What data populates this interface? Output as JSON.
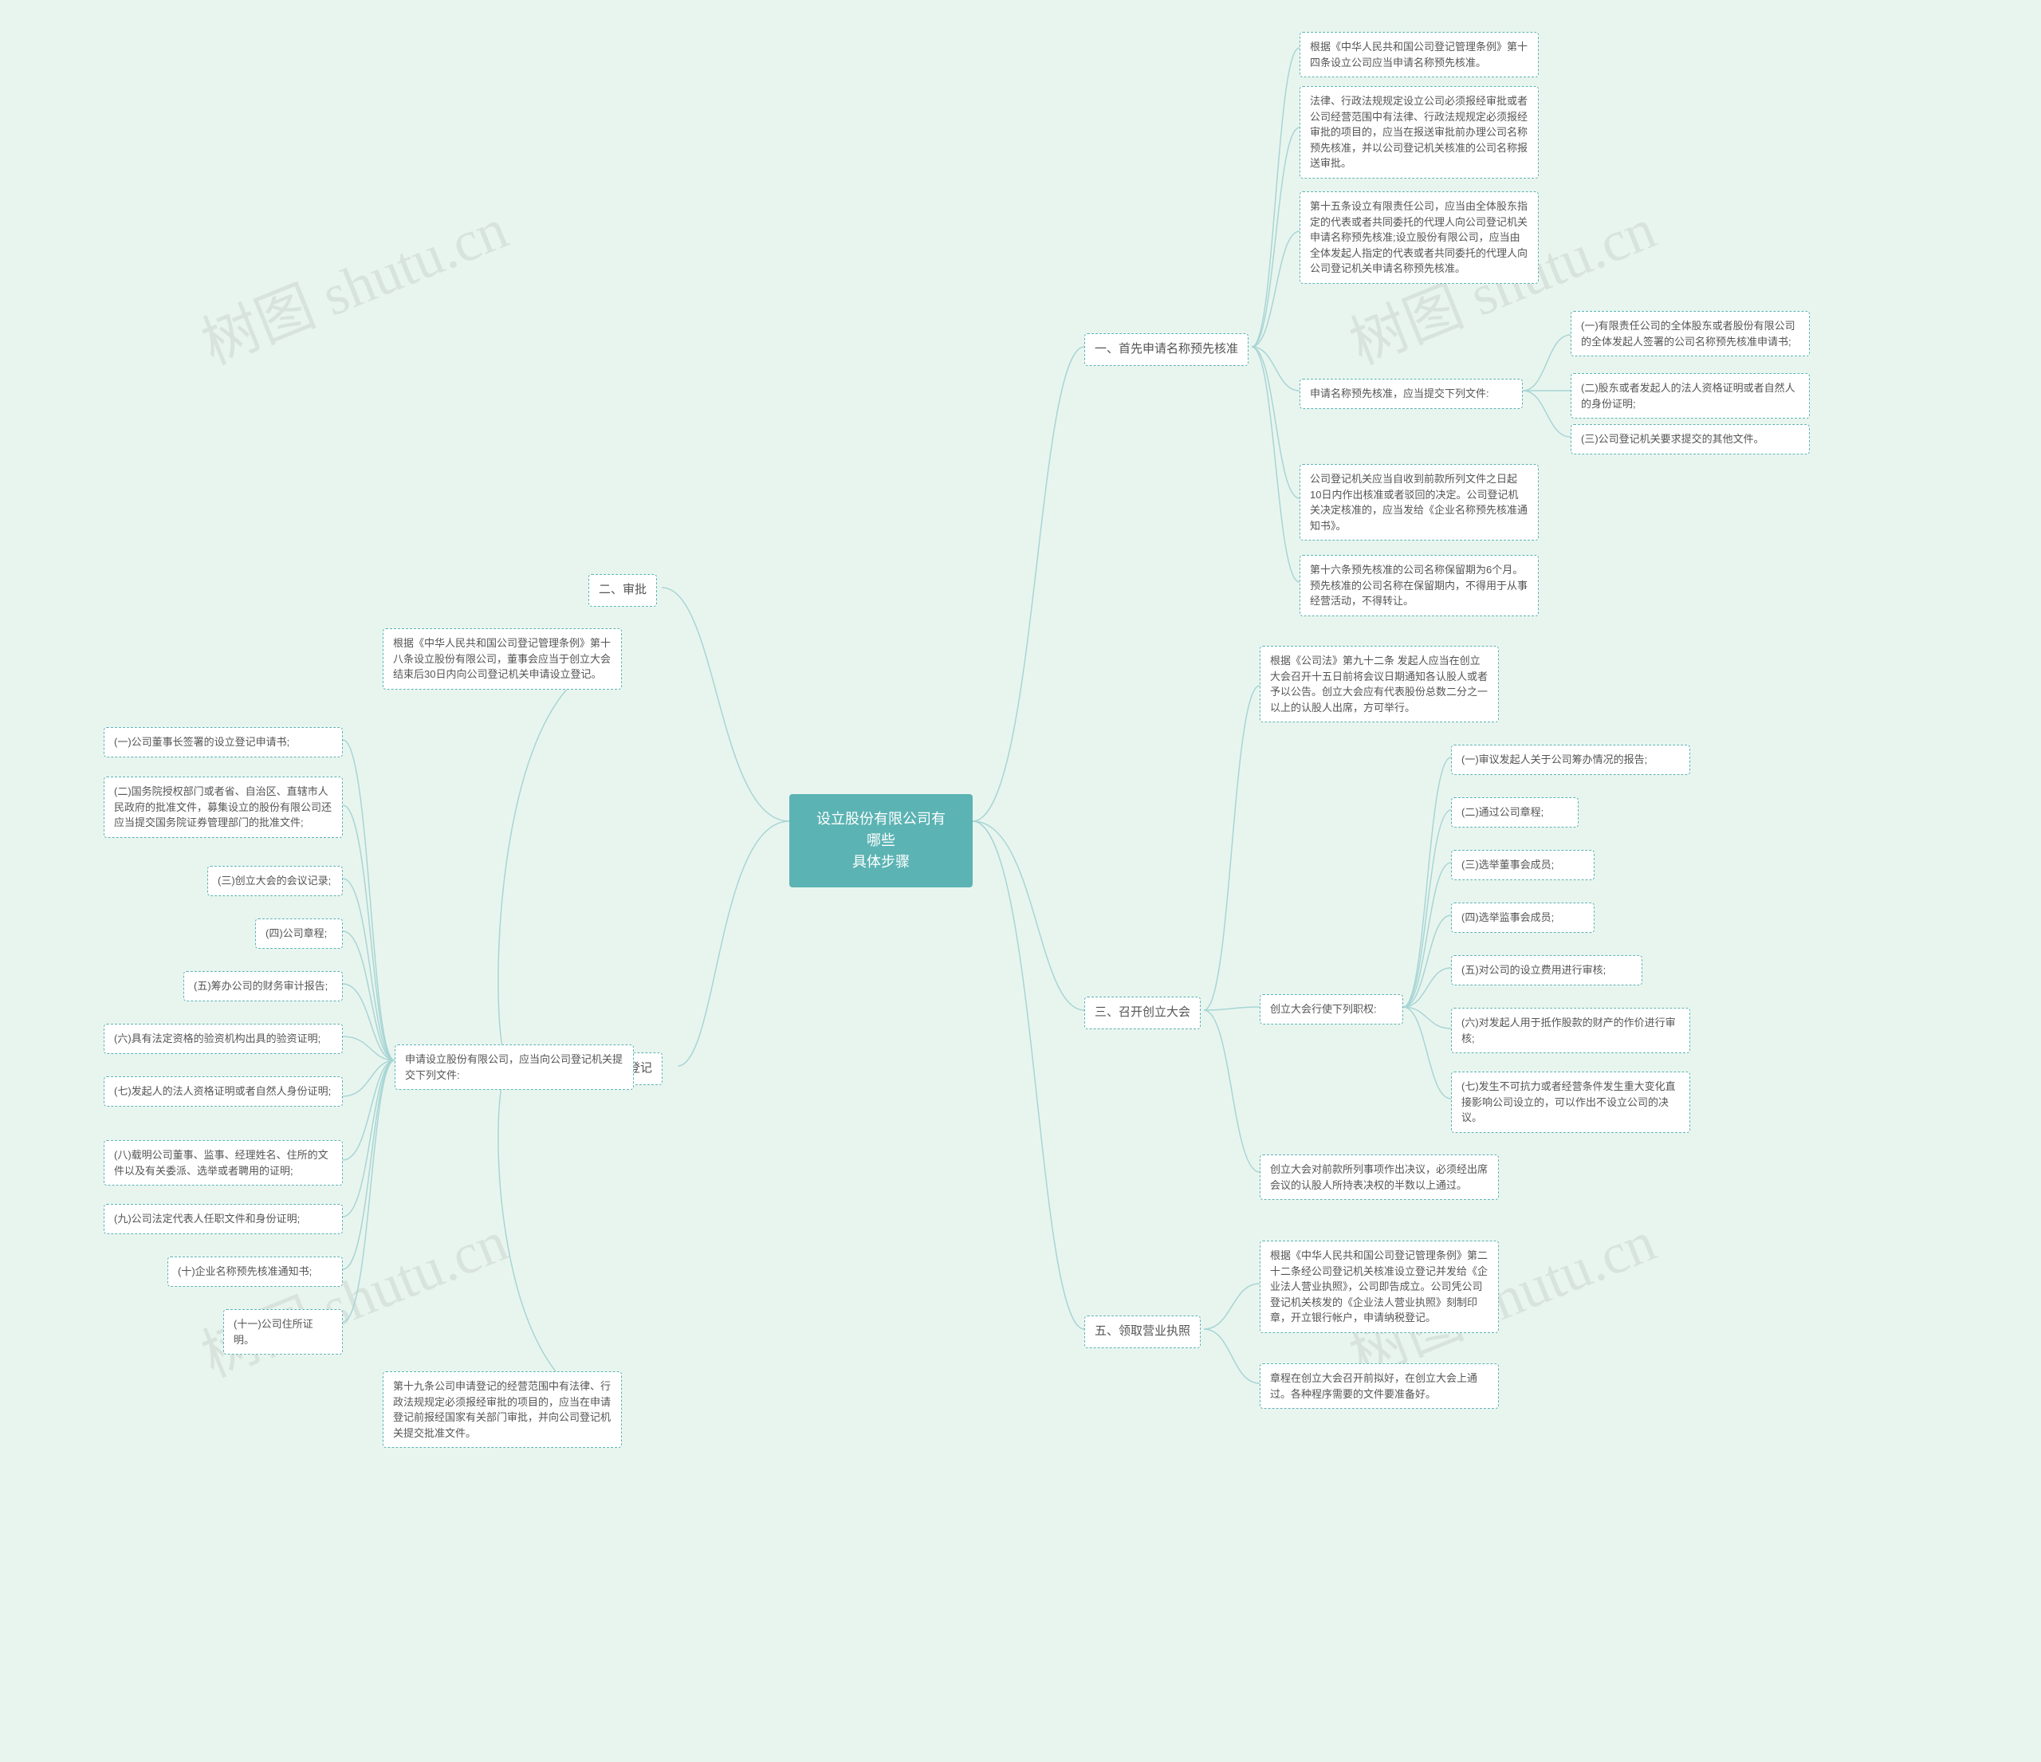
{
  "center": "设立股份有限公司有哪些\n具体步骤",
  "watermark": "树图 shutu.cn",
  "colors": {
    "bg": "#e8f5ee",
    "center_bg": "#5cb3b3",
    "center_text": "#ffffff",
    "node_border": "#5cb3b3",
    "node_bg": "#ffffff",
    "node_text": "#555555",
    "connector": "#a8d5d5",
    "watermark": "rgba(128,128,128,0.15)"
  },
  "branches": {
    "b1": {
      "label": "一、首先申请名称预先核准",
      "children": {
        "c1": "根据《中华人民共和国公司登记管理条例》第十四条设立公司应当申请名称预先核准。",
        "c2": "法律、行政法规规定设立公司必须报经审批或者公司经营范围中有法律、行政法规规定必须报经审批的项目的，应当在报送审批前办理公司名称预先核准，并以公司登记机关核准的公司名称报送审批。",
        "c3": "第十五条设立有限责任公司，应当由全体股东指定的代表或者共同委托的代理人向公司登记机关申请名称预先核准;设立股份有限公司，应当由全体发起人指定的代表或者共同委托的代理人向公司登记机关申请名称预先核准。",
        "c4": {
          "label": "申请名称预先核准，应当提交下列文件:",
          "sub": {
            "s1": "(一)有限责任公司的全体股东或者股份有限公司的全体发起人签署的公司名称预先核准申请书;",
            "s2": "(二)股东或者发起人的法人资格证明或者自然人的身份证明;",
            "s3": "(三)公司登记机关要求提交的其他文件。"
          }
        },
        "c5": "公司登记机关应当自收到前款所列文件之日起10日内作出核准或者驳回的决定。公司登记机关决定核准的，应当发给《企业名称预先核准通知书》。",
        "c6": "第十六条预先核准的公司名称保留期为6个月。预先核准的公司名称在保留期内，不得用于从事经营活动，不得转让。"
      }
    },
    "b2": {
      "label": "二、审批"
    },
    "b3": {
      "label": "三、召开创立大会",
      "children": {
        "c1": "根据《公司法》第九十二条 发起人应当在创立大会召开十五日前将会议日期通知各认股人或者予以公告。创立大会应有代表股份总数二分之一以上的认股人出席，方可举行。",
        "c2": {
          "label": "创立大会行使下列职权:",
          "sub": {
            "s1": "(一)审议发起人关于公司筹办情况的报告;",
            "s2": "(二)通过公司章程;",
            "s3": "(三)选举董事会成员;",
            "s4": "(四)选举监事会成员;",
            "s5": "(五)对公司的设立费用进行审核;",
            "s6": "(六)对发起人用于抵作股款的财产的作价进行审核;",
            "s7": "(七)发生不可抗力或者经营条件发生重大变化直接影响公司设立的，可以作出不设立公司的决议。"
          }
        },
        "c3": "创立大会对前款所列事项作出决议，必须经出席会议的认股人所持表决权的半数以上通过。"
      }
    },
    "b4": {
      "label": "四、向登记机关申请登记",
      "children": {
        "c1": "根据《中华人民共和国公司登记管理条例》第十八条设立股份有限公司，董事会应当于创立大会结束后30日内向公司登记机关申请设立登记。",
        "c2": {
          "label": "申请设立股份有限公司，应当向公司登记机关提交下列文件:",
          "sub": {
            "s1": "(一)公司董事长签署的设立登记申请书;",
            "s2": "(二)国务院授权部门或者省、自治区、直辖市人民政府的批准文件，募集设立的股份有限公司还应当提交国务院证券管理部门的批准文件;",
            "s3": "(三)创立大会的会议记录;",
            "s4": "(四)公司章程;",
            "s5": "(五)筹办公司的财务审计报告;",
            "s6": "(六)具有法定资格的验资机构出具的验资证明;",
            "s7": "(七)发起人的法人资格证明或者自然人身份证明;",
            "s8": "(八)载明公司董事、监事、经理姓名、住所的文件以及有关委派、选举或者聘用的证明;",
            "s9": "(九)公司法定代表人任职文件和身份证明;",
            "s10": "(十)企业名称预先核准通知书;",
            "s11": "(十一)公司住所证明。"
          }
        },
        "c3": "第十九条公司申请登记的经营范围中有法律、行政法规规定必须报经审批的项目的，应当在申请登记前报经国家有关部门审批，并向公司登记机关提交批准文件。"
      }
    },
    "b5": {
      "label": "五、领取营业执照",
      "children": {
        "c1": "根据《中华人民共和国公司登记管理条例》第二十二条经公司登记机关核准设立登记并发给《企业法人营业执照》，公司即告成立。公司凭公司登记机关核发的《企业法人营业执照》刻制印章，开立银行帐户，申请纳税登记。",
        "c2": "章程在创立大会召开前拟好，在创立大会上通过。各种程序需要的文件要准备好。"
      }
    }
  }
}
